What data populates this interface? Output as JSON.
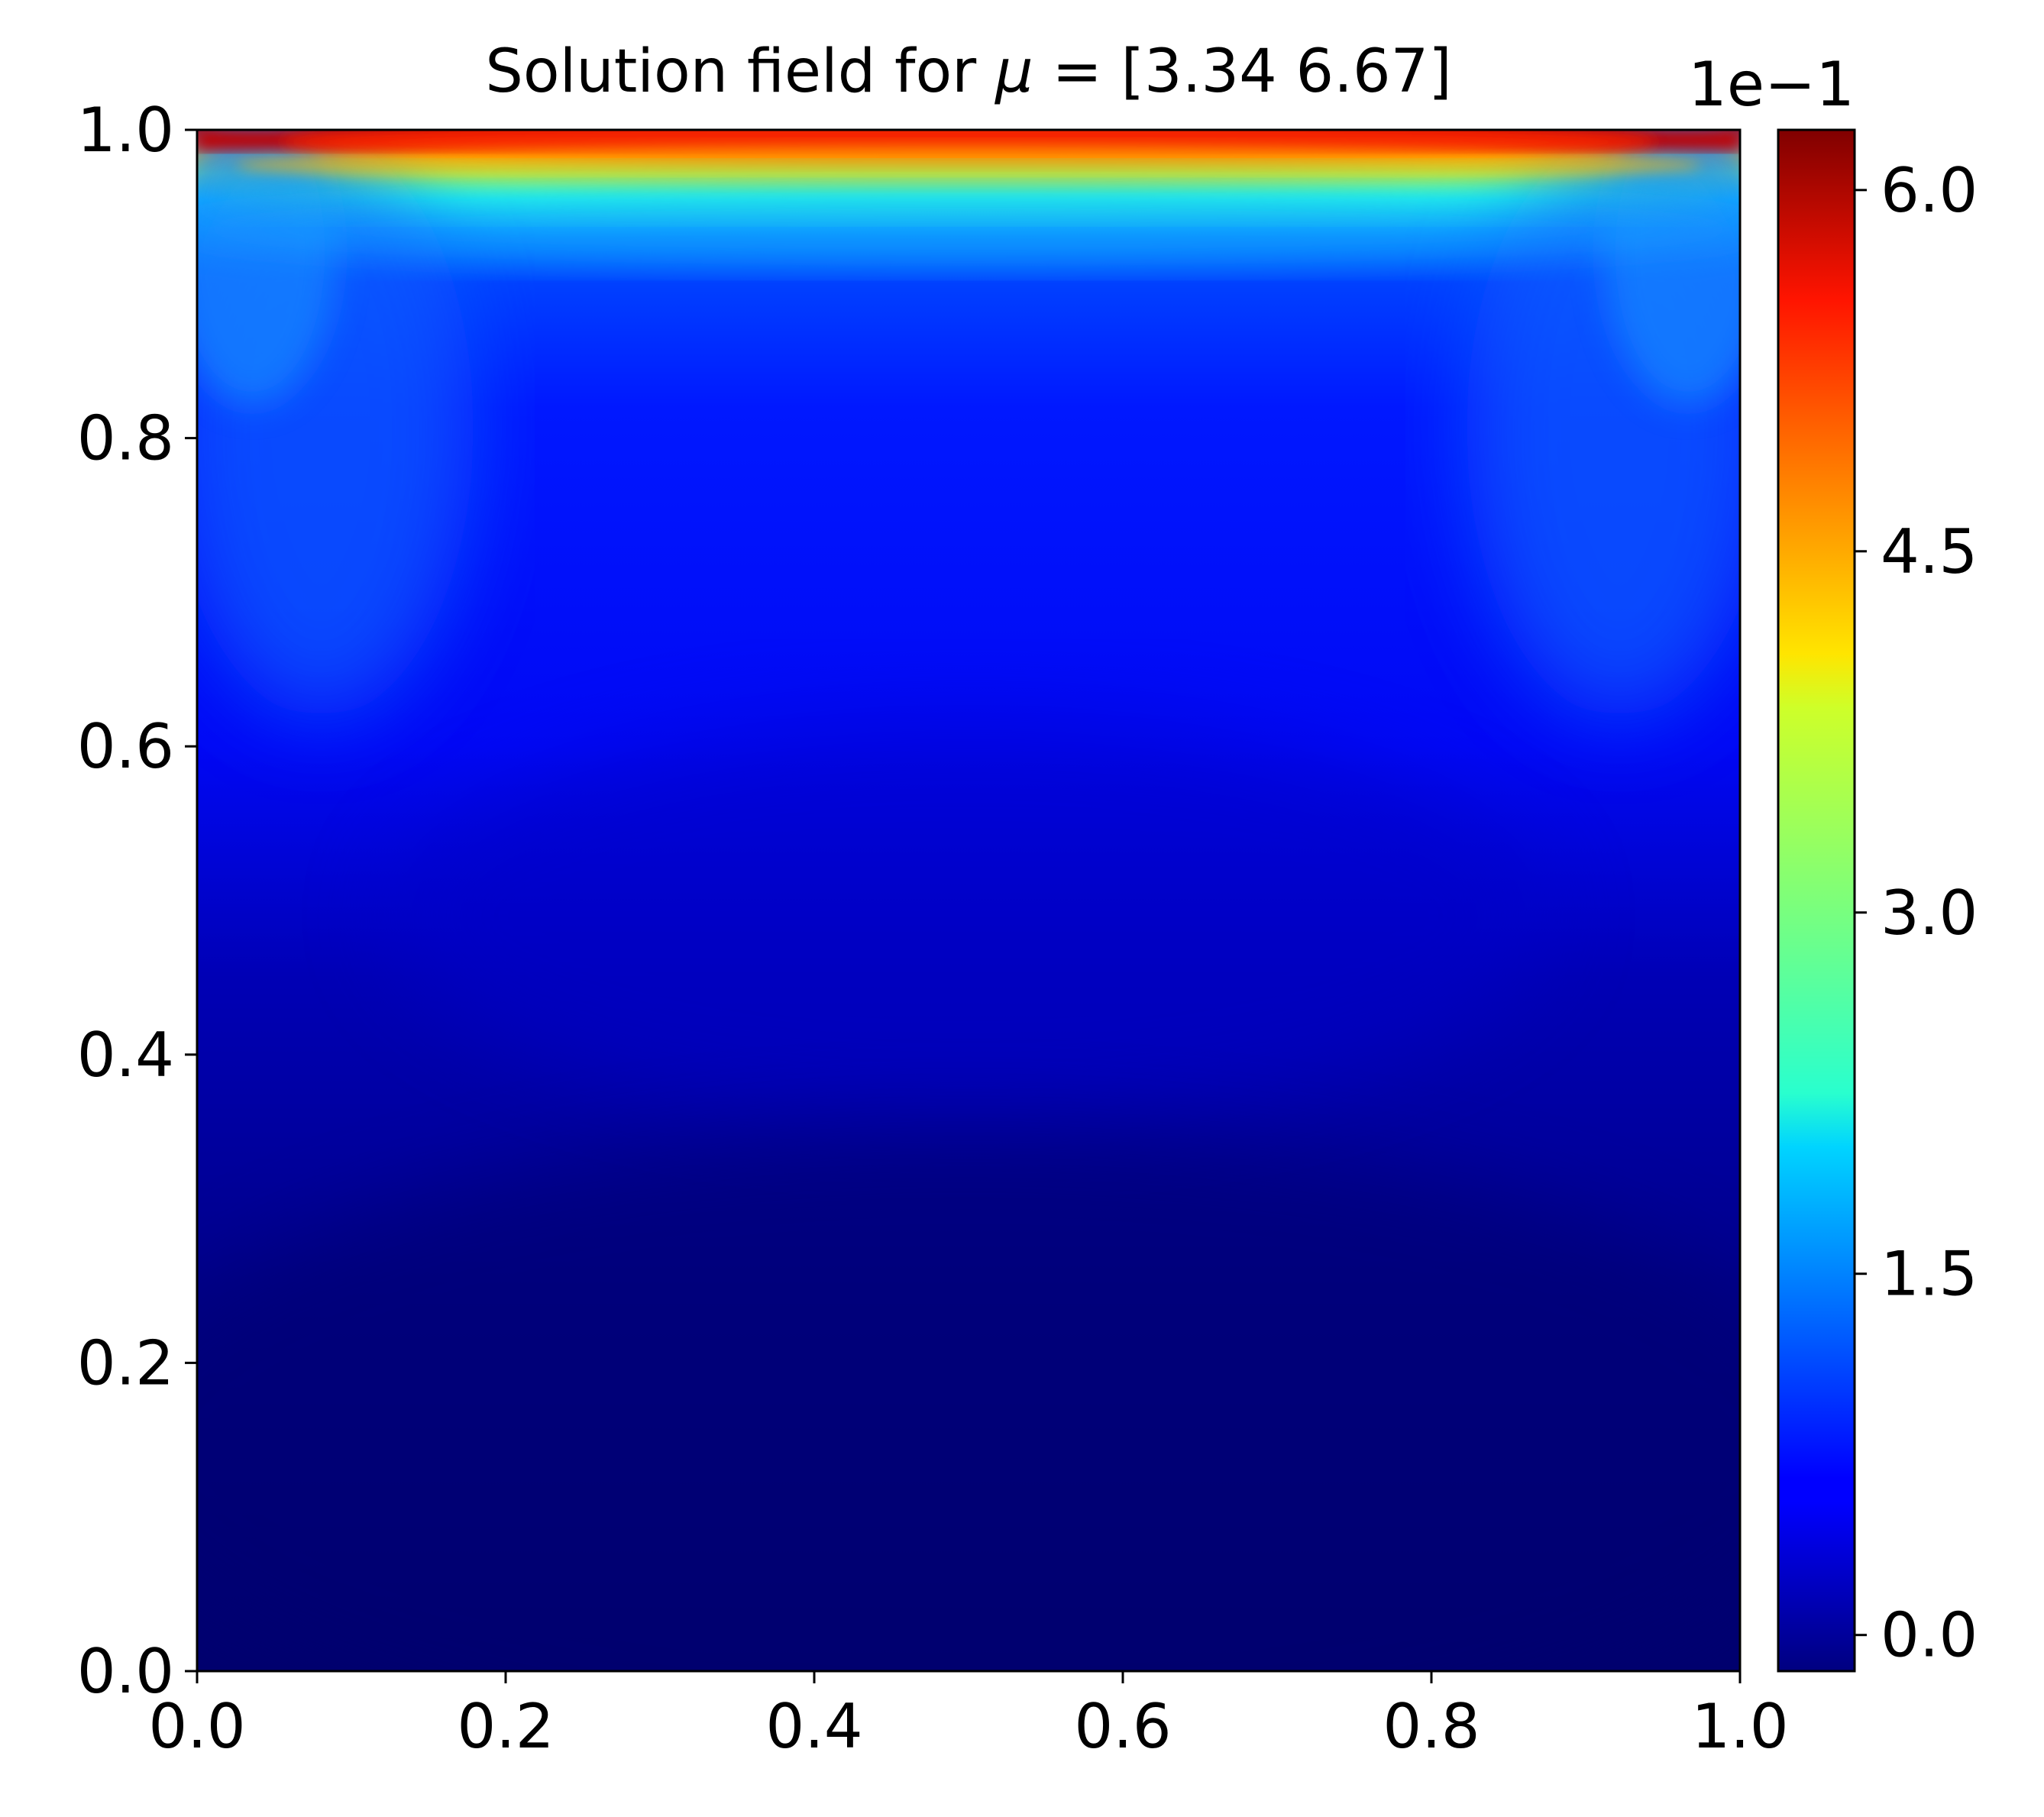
{
  "chart_data": {
    "type": "heatmap",
    "title": {
      "prefix": "Solution field for ",
      "symbol": "μ",
      "suffix": " = [3.34 6.67]"
    },
    "xlabel": "",
    "ylabel": "",
    "xlim": [
      0.0,
      1.0
    ],
    "ylim": [
      0.0,
      1.0
    ],
    "x_ticks": [
      0.0,
      0.2,
      0.4,
      0.6,
      0.8,
      1.0
    ],
    "x_tick_labels": [
      "0.0",
      "0.2",
      "0.4",
      "0.6",
      "0.8",
      "1.0"
    ],
    "y_ticks": [
      0.0,
      0.2,
      0.4,
      0.6,
      0.8,
      1.0
    ],
    "y_tick_labels": [
      "0.0",
      "0.2",
      "0.4",
      "0.6",
      "0.8",
      "1.0"
    ],
    "grid": false,
    "colormap": "jet",
    "colorbar": {
      "location": "right",
      "offset_text": "1e−1",
      "range": [
        -0.15,
        6.25
      ],
      "ticks": [
        0.0,
        1.5,
        3.0,
        4.5,
        6.0
      ],
      "tick_labels": [
        "0.0",
        "1.5",
        "3.0",
        "4.5",
        "6.0"
      ]
    },
    "field_summary": {
      "description_values": {
        "top_edge_max": 6.2,
        "core_min": 0.1,
        "bottom_min": 0.0
      }
    }
  }
}
